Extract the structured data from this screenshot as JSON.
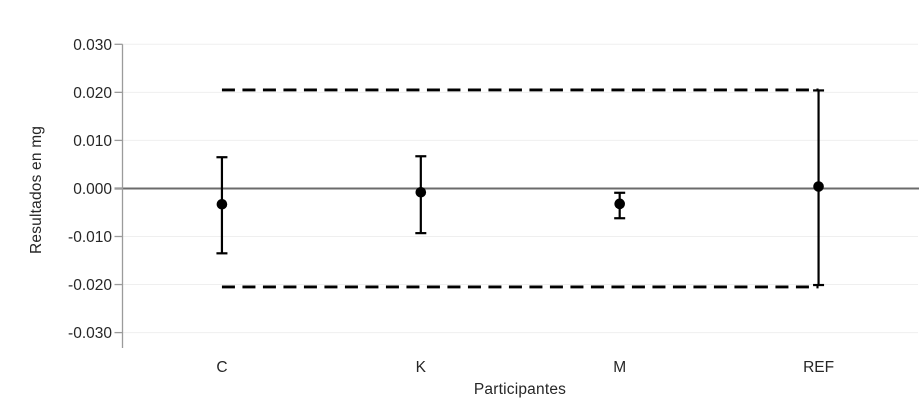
{
  "chart_data": {
    "type": "scatter",
    "title": "",
    "xlabel": "Participantes",
    "ylabel": "Resultados en mg",
    "categories": [
      "C",
      "K",
      "M",
      "REF"
    ],
    "points": [
      {
        "label": "C",
        "value": -0.0033,
        "upper": 0.0065,
        "lower": -0.0135
      },
      {
        "label": "K",
        "value": -0.0008,
        "upper": 0.0067,
        "lower": -0.0093
      },
      {
        "label": "M",
        "value": -0.0032,
        "upper": -0.0009,
        "lower": -0.0062
      },
      {
        "label": "REF",
        "value": 0.0004,
        "upper": 0.0204,
        "lower": -0.0201
      }
    ],
    "limit_lines": {
      "upper": 0.0205,
      "lower": -0.0205,
      "style": "dashed"
    },
    "zero_line_value": 0,
    "ylim": [
      -0.03,
      0.03
    ],
    "ytick_values": [
      0.03,
      0.02,
      0.01,
      0,
      -0.01,
      -0.02,
      -0.03
    ],
    "ytick_labels": [
      "0.030",
      "0.020",
      "0.010",
      "0.000",
      "-0.010",
      "-0.020",
      "-0.030"
    ],
    "grid": true,
    "legend": "none",
    "colors": {
      "point": "#000000",
      "error_bar": "#000000",
      "limit_line": "#000000",
      "zero_line": "#6b6b6b",
      "grid_line": "#efefef",
      "axis_line": "#9b9b9b",
      "text": "#262626"
    }
  }
}
